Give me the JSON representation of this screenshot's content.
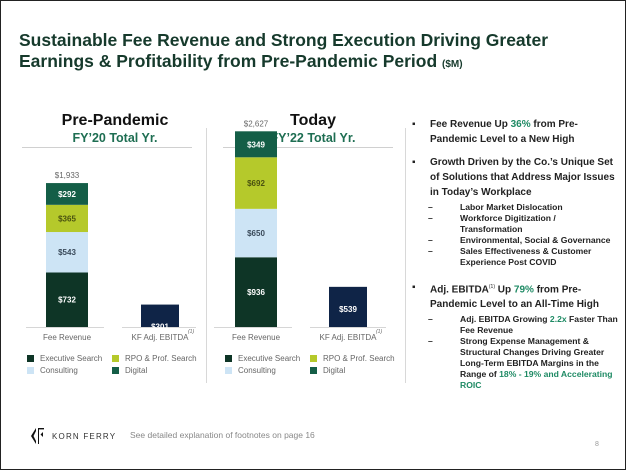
{
  "title": {
    "line1": "Sustainable Fee Revenue and Strong Execution Driving Greater",
    "line2": "Earnings & Profitability from Pre-Pandemic Period",
    "unit": "($M)"
  },
  "panels": [
    {
      "heading": "Pre-Pandemic",
      "subheading": "FY’20 Total Yr."
    },
    {
      "heading": "Today",
      "subheading": "FY’22 Total Yr."
    }
  ],
  "colors": {
    "executive_search": "#0e3526",
    "consulting": "#cde4f5",
    "rpo": "#b5c92b",
    "digital": "#145e47",
    "ebitda": "#0f2447"
  },
  "chart_data": [
    {
      "type": "bar",
      "title": "Pre-Pandemic FY’20 Total Yr.",
      "categories": [
        "Fee Revenue",
        "KF Adj. EBITDA"
      ],
      "category_footnote": [
        "",
        "(1)"
      ],
      "stacked": true,
      "series": [
        {
          "name": "Executive Search",
          "values": [
            732,
            null
          ],
          "labels": [
            "$732",
            ""
          ]
        },
        {
          "name": "Consulting",
          "values": [
            543,
            null
          ],
          "labels": [
            "$543",
            ""
          ]
        },
        {
          "name": "RPO & Prof. Search",
          "values": [
            365,
            null
          ],
          "labels": [
            "$365",
            ""
          ]
        },
        {
          "name": "Digital",
          "values": [
            292,
            null
          ],
          "labels": [
            "$292",
            ""
          ]
        },
        {
          "name": "KF Adj. EBITDA",
          "values": [
            null,
            301
          ],
          "labels": [
            "",
            "$301"
          ]
        }
      ],
      "totals": [
        "$1,933",
        ""
      ],
      "ylim": [
        0,
        2700
      ],
      "grid": false,
      "legend": [
        "Executive Search",
        "RPO & Prof. Search",
        "Consulting",
        "Digital"
      ],
      "legend_position": "bottom"
    },
    {
      "type": "bar",
      "title": "Today FY’22 Total Yr.",
      "categories": [
        "Fee Revenue",
        "KF Adj. EBITDA"
      ],
      "category_footnote": [
        "",
        "(1)"
      ],
      "stacked": true,
      "series": [
        {
          "name": "Executive Search",
          "values": [
            936,
            null
          ],
          "labels": [
            "$936",
            ""
          ]
        },
        {
          "name": "Consulting",
          "values": [
            650,
            null
          ],
          "labels": [
            "$650",
            ""
          ]
        },
        {
          "name": "RPO & Prof. Search",
          "values": [
            692,
            null
          ],
          "labels": [
            "$692",
            ""
          ]
        },
        {
          "name": "Digital",
          "values": [
            349,
            null
          ],
          "labels": [
            "$349",
            ""
          ]
        },
        {
          "name": "KF Adj. EBITDA",
          "values": [
            null,
            539
          ],
          "labels": [
            "",
            "$539"
          ]
        }
      ],
      "totals": [
        "$2,627",
        ""
      ],
      "ylim": [
        0,
        2700
      ],
      "grid": false,
      "legend": [
        "Executive Search",
        "RPO & Prof. Search",
        "Consulting",
        "Digital"
      ],
      "legend_position": "bottom"
    }
  ],
  "legend": {
    "executive_search": "Executive Search",
    "rpo": "RPO & Prof. Search",
    "consulting": "Consulting",
    "digital": "Digital"
  },
  "bullets": {
    "b1_pre": "Fee Revenue Up ",
    "b1_hl": "36%",
    "b1_post": " from Pre-Pandemic Level to a New High",
    "b2": "Growth Driven by the Co.’s Unique Set of Solutions that Address Major Issues in Today’s Workplace",
    "b2_subs": [
      "Labor Market Dislocation",
      "Workforce Digitization / Transformation",
      "Environmental, Social & Governance",
      "Sales Effectiveness & Customer Experience Post COVID"
    ],
    "b3_pre": "Adj. EBITDA",
    "b3_sup": "(1)",
    "b3_mid": " Up ",
    "b3_hl": "79%",
    "b3_post": " from Pre-Pandemic Level to an All-Time High",
    "b3_sub1_pre": "Adj. EBITDA Growing ",
    "b3_sub1_hl": "2.2x",
    "b3_sub1_post": " Faster Than Fee Revenue",
    "b3_sub2_pre": "Strong Expense Management & Structural Changes Driving Greater Long-Term EBITDA Margins in the Range of ",
    "b3_sub2_hl": "18% - 19% and Accelerating ROIC"
  },
  "footer": {
    "logo_text": "KORN FERRY",
    "footnote": "See detailed explanation of footnotes on page 16",
    "page_number": "8"
  },
  "glyphs": {
    "bullet": "▪",
    "dash": "–"
  }
}
